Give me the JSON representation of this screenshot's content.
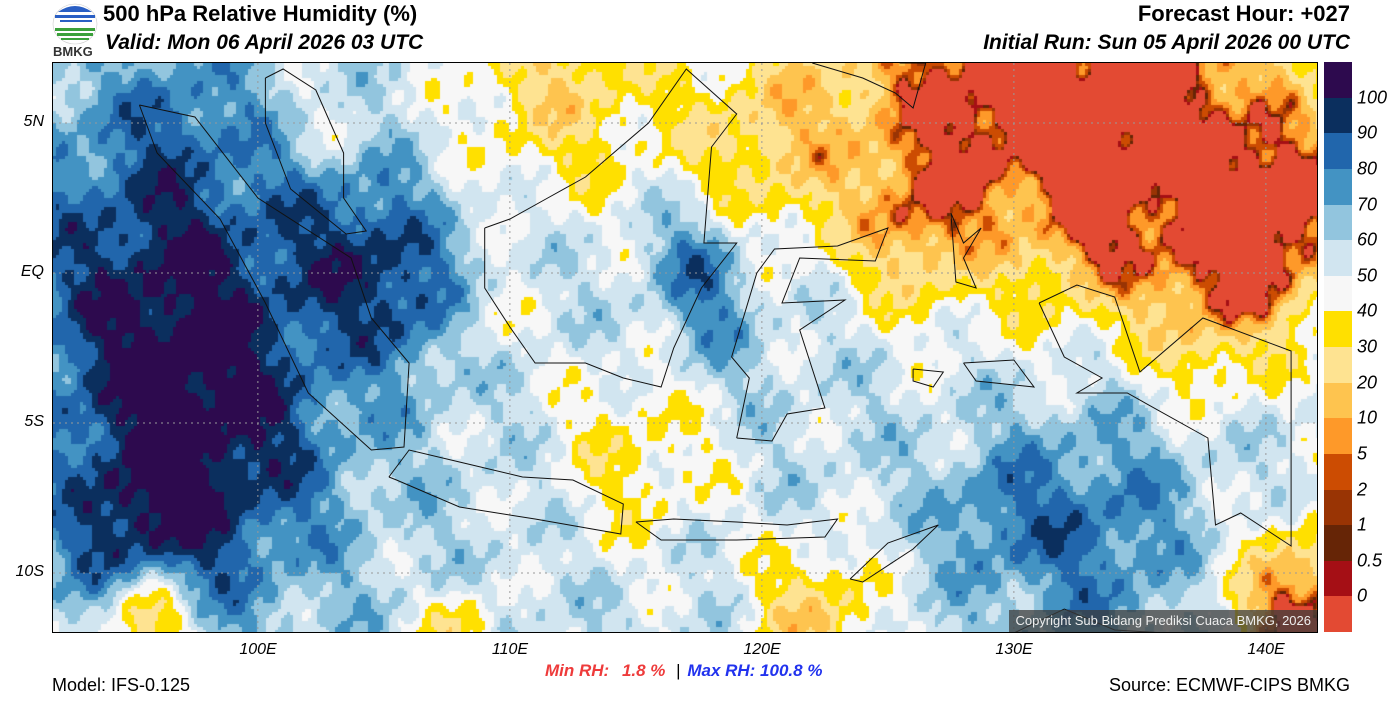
{
  "header": {
    "logo_text": "BMKG",
    "title": "500 hPa Relative Humidity (%)",
    "valid": "Valid: Mon 06 April 2026 03 UTC",
    "forecast_hour": "Forecast Hour: +027",
    "initial_run": "Initial Run: Sun 05 April 2026 00 UTC"
  },
  "map": {
    "lat_labels": [
      "5N",
      "EQ",
      "5S",
      "10S"
    ],
    "lon_labels": [
      "100E",
      "110E",
      "120E",
      "130E",
      "140E"
    ],
    "copyright": "Copyright Sub Bidang Prediksi Cuaca BMKG, 2026"
  },
  "colorbar": {
    "labels": [
      "100",
      "90",
      "80",
      "70",
      "60",
      "50",
      "40",
      "30",
      "20",
      "10",
      "5",
      "2",
      "1",
      "0.5",
      "0"
    ],
    "colors_top_to_bottom": [
      "#2d0a4e",
      "#0b2f5e",
      "#2166ac",
      "#4393c3",
      "#92c5de",
      "#d1e5f0",
      "#f7f7f7",
      "#ffe000",
      "#fee391",
      "#fec44f",
      "#fe9929",
      "#cc4c02",
      "#993404",
      "#662506",
      "#a50f15",
      "#e34a33"
    ]
  },
  "stats": {
    "min_label": "Min RH:",
    "min_value": "1.8 %",
    "separator": "|",
    "max_label": "Max RH: 100.8 %",
    "min_color": "#ee3b3b",
    "max_color": "#2233ee"
  },
  "footer": {
    "model": "Model: IFS-0.125",
    "source": "Source: ECMWF-CIPS BMKG"
  }
}
